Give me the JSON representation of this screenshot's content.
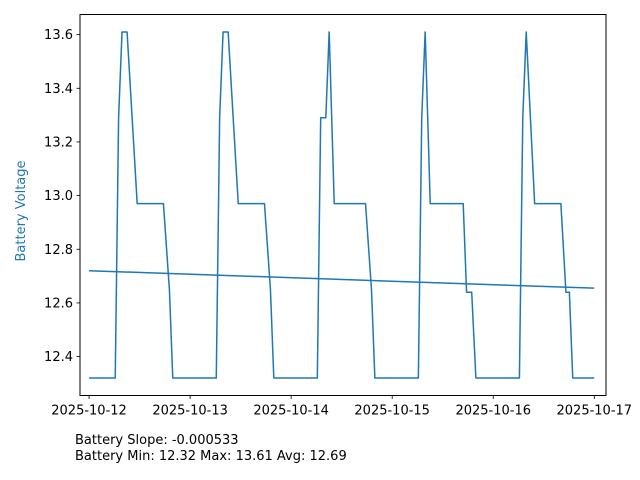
{
  "chart_data": {
    "type": "line",
    "title": "",
    "xlabel": "",
    "ylabel": "Battery Voltage",
    "xlim": [
      "2025-10-11T21:51",
      "2025-10-17T02:47"
    ],
    "ylim": [
      12.255,
      13.675
    ],
    "xticks": [
      "2025-10-12",
      "2025-10-13",
      "2025-10-14",
      "2025-10-15",
      "2025-10-16",
      "2025-10-17"
    ],
    "yticks": [
      12.4,
      12.6,
      12.8,
      13.0,
      13.2,
      13.4,
      13.6
    ],
    "ytick_labels": [
      "12.4",
      "12.6",
      "12.8",
      "13.0",
      "13.2",
      "13.4",
      "13.6"
    ],
    "grid": false,
    "colors": {
      "series": "#1f77b4",
      "ylabel": "#1f77b4"
    },
    "series": [
      {
        "points": [
          [
            "2025-10-12T00:00",
            12.32
          ],
          [
            "2025-10-12T06:13",
            12.32
          ],
          [
            "2025-10-12T07:01",
            13.29
          ],
          [
            "2025-10-12T07:50",
            13.61
          ],
          [
            "2025-10-12T09:02",
            13.61
          ],
          [
            "2025-10-12T11:26",
            12.97
          ],
          [
            "2025-10-12T17:40",
            12.97
          ],
          [
            "2025-10-12T19:05",
            12.65
          ],
          [
            "2025-10-12T19:53",
            12.32
          ],
          [
            "2025-10-13T06:13",
            12.32
          ],
          [
            "2025-10-13T07:01",
            13.29
          ],
          [
            "2025-10-13T07:50",
            13.61
          ],
          [
            "2025-10-13T09:02",
            13.61
          ],
          [
            "2025-10-13T11:26",
            12.97
          ],
          [
            "2025-10-13T17:40",
            12.97
          ],
          [
            "2025-10-13T19:05",
            12.65
          ],
          [
            "2025-10-13T19:53",
            12.32
          ],
          [
            "2025-10-14T06:13",
            12.32
          ],
          [
            "2025-10-14T07:01",
            13.29
          ],
          [
            "2025-10-14T08:14",
            13.29
          ],
          [
            "2025-10-14T09:02",
            13.61
          ],
          [
            "2025-10-14T10:14",
            12.97
          ],
          [
            "2025-10-14T17:40",
            12.97
          ],
          [
            "2025-10-14T19:05",
            12.65
          ],
          [
            "2025-10-14T19:53",
            12.32
          ],
          [
            "2025-10-15T06:13",
            12.32
          ],
          [
            "2025-10-15T07:01",
            13.29
          ],
          [
            "2025-10-15T07:50",
            13.61
          ],
          [
            "2025-10-15T09:02",
            12.97
          ],
          [
            "2025-10-15T16:52",
            12.97
          ],
          [
            "2025-10-15T17:40",
            12.64
          ],
          [
            "2025-10-15T18:53",
            12.64
          ],
          [
            "2025-10-15T19:53",
            12.32
          ],
          [
            "2025-10-16T06:13",
            12.32
          ],
          [
            "2025-10-16T07:01",
            13.29
          ],
          [
            "2025-10-16T07:50",
            13.61
          ],
          [
            "2025-10-16T09:50",
            12.97
          ],
          [
            "2025-10-16T16:04",
            12.97
          ],
          [
            "2025-10-16T17:16",
            12.64
          ],
          [
            "2025-10-16T18:05",
            12.64
          ],
          [
            "2025-10-16T18:53",
            12.32
          ],
          [
            "2025-10-16T23:59",
            12.32
          ]
        ]
      },
      {
        "points": [
          [
            "2025-10-12T00:00",
            12.72
          ],
          [
            "2025-10-16T23:59",
            12.655
          ]
        ]
      }
    ]
  },
  "stats": {
    "slope_line": "Battery Slope: -0.000533",
    "summary_line": "Battery Min: 12.32 Max: 13.61 Avg: 12.69"
  }
}
